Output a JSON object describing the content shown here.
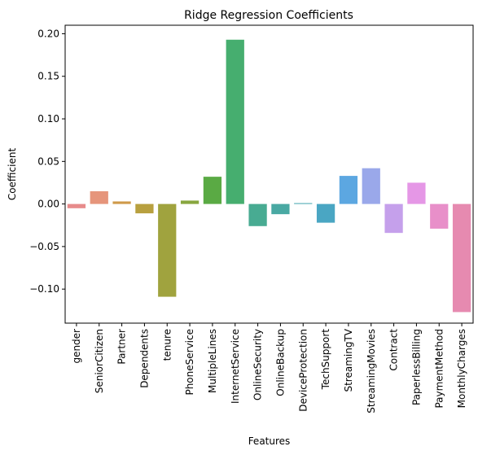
{
  "chart_data": {
    "type": "bar",
    "title": "Ridge Regression Coefficients",
    "xlabel": "Features",
    "ylabel": "Coefficient",
    "categories": [
      "gender",
      "SeniorCitizen",
      "Partner",
      "Dependents",
      "tenure",
      "PhoneService",
      "MultipleLines",
      "InternetService",
      "OnlineSecurity",
      "OnlineBackup",
      "DeviceProtection",
      "TechSupport",
      "StreamingTV",
      "StreamingMovies",
      "Contract",
      "PaperlessBilling",
      "PaymentMethod",
      "MonthlyCharges"
    ],
    "values": [
      -0.005,
      0.015,
      0.003,
      -0.011,
      -0.109,
      0.004,
      0.032,
      0.193,
      -0.026,
      -0.012,
      0.001,
      -0.022,
      0.033,
      0.042,
      -0.034,
      0.025,
      -0.029,
      -0.127
    ],
    "colors": [
      "#e78b8b",
      "#e6957b",
      "#cf9a4a",
      "#b8a03f",
      "#a0a33e",
      "#88a63f",
      "#5aaa44",
      "#46ae6f",
      "#48ab92",
      "#49a9a3",
      "#4aa8b2",
      "#4aa6c3",
      "#5ca7e1",
      "#9aa8ea",
      "#c5a0eb",
      "#e597e6",
      "#e88fc9",
      "#e68ab0"
    ],
    "ylim": [
      -0.14,
      0.21
    ],
    "yticks": [
      -0.1,
      -0.05,
      0.0,
      0.05,
      0.1,
      0.15,
      0.2
    ],
    "ytick_labels": [
      "−0.10",
      "−0.05",
      "0.00",
      "0.05",
      "0.10",
      "0.15",
      "0.20"
    ],
    "grid": false,
    "legend": "none"
  }
}
